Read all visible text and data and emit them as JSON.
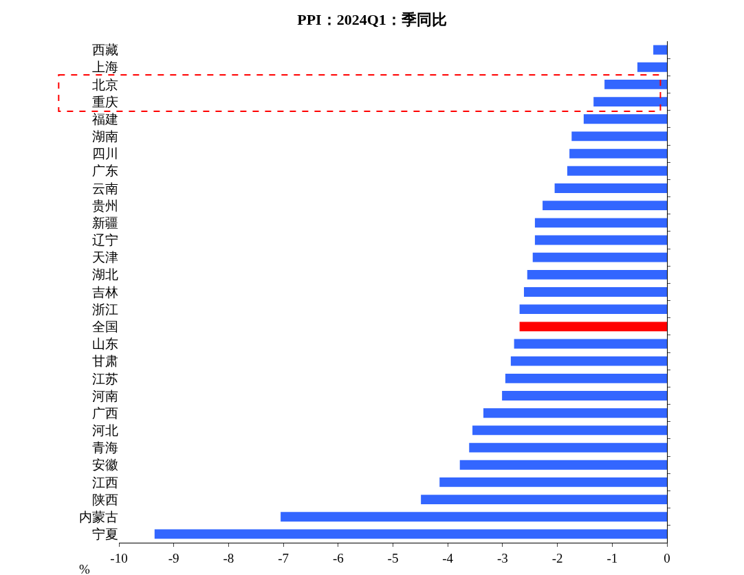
{
  "chart_data": {
    "type": "bar",
    "orientation": "horizontal",
    "title": "PPI：2024Q1：季同比",
    "xlabel": "%",
    "categories": [
      "西藏",
      "上海",
      "北京",
      "重庆",
      "福建",
      "湖南",
      "四川",
      "广东",
      "云南",
      "贵州",
      "新疆",
      "辽宁",
      "天津",
      "湖北",
      "吉林",
      "浙江",
      "全国",
      "山东",
      "甘肃",
      "江苏",
      "河南",
      "广西",
      "河北",
      "青海",
      "安徽",
      "江西",
      "陕西",
      "内蒙古",
      "宁夏"
    ],
    "values": [
      -0.25,
      -0.54,
      -1.14,
      -1.34,
      -1.52,
      -1.74,
      -1.78,
      -1.82,
      -2.05,
      -2.27,
      -2.41,
      -2.41,
      -2.45,
      -2.55,
      -2.61,
      -2.69,
      -2.69,
      -2.79,
      -2.85,
      -2.95,
      -3.01,
      -3.35,
      -3.55,
      -3.61,
      -3.78,
      -4.15,
      -4.49,
      -7.05,
      -9.35
    ],
    "colors": [
      "#3366ff",
      "#3366ff",
      "#3366ff",
      "#3366ff",
      "#3366ff",
      "#3366ff",
      "#3366ff",
      "#3366ff",
      "#3366ff",
      "#3366ff",
      "#3366ff",
      "#3366ff",
      "#3366ff",
      "#3366ff",
      "#3366ff",
      "#3366ff",
      "#ff0000",
      "#3366ff",
      "#3366ff",
      "#3366ff",
      "#3366ff",
      "#3366ff",
      "#3366ff",
      "#3366ff",
      "#3366ff",
      "#3366ff",
      "#3366ff",
      "#3366ff",
      "#3366ff"
    ],
    "xlim": [
      -10,
      0
    ],
    "xticks": [
      -10,
      -9,
      -8,
      -7,
      -6,
      -5,
      -4,
      -3,
      -2,
      -1,
      0
    ]
  }
}
